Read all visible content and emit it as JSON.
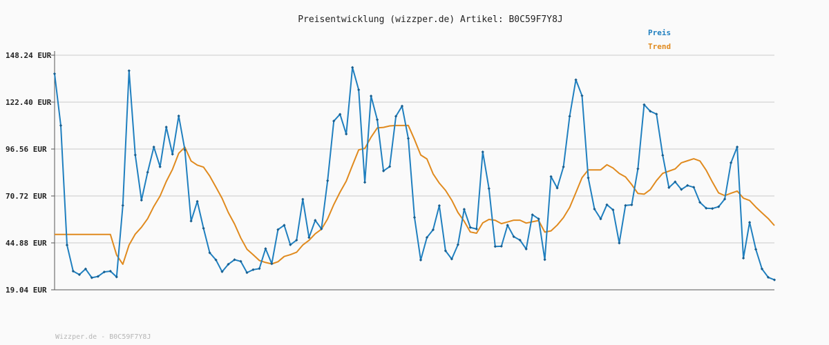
{
  "chart_data": {
    "type": "line",
    "title": "Preisentwicklung (wizzper.de) Artikel: B0C59F7Y8J",
    "footer": "Wizzper.de - B0C59F7Y8J",
    "y_tick_labels": [
      "148.24 EUR",
      "122.40 EUR",
      "96.56 EUR",
      "70.72 EUR",
      "44.88 EUR",
      "19.04 EUR"
    ],
    "y_ticks": [
      148.24,
      122.4,
      96.56,
      70.72,
      44.88,
      19.04
    ],
    "ylim": [
      19.04,
      148.24
    ],
    "grid": true,
    "legend_position": "top-right",
    "series": [
      {
        "name": "Preis",
        "color": "#1f7fbf",
        "values": [
          138.0,
          109.5,
          43.7,
          29.3,
          27.4,
          30.5,
          25.7,
          26.4,
          28.9,
          29.3,
          26.1,
          65.5,
          139.7,
          93.3,
          68.4,
          83.8,
          97.7,
          86.8,
          108.7,
          93.7,
          114.8,
          96.1,
          56.9,
          67.7,
          52.9,
          39.4,
          35.5,
          29.0,
          33.1,
          35.6,
          34.7,
          28.5,
          30.1,
          30.7,
          41.7,
          33.4,
          52.2,
          54.6,
          43.8,
          46.4,
          68.9,
          47.8,
          57.3,
          52.6,
          79.1,
          112.0,
          115.7,
          104.8,
          141.5,
          129.2,
          78.2,
          125.8,
          112.7,
          84.5,
          86.9,
          114.6,
          120.2,
          102.4,
          58.9,
          35.4,
          47.9,
          52.1,
          65.4,
          40.5,
          36.0,
          43.9,
          63.4,
          53.4,
          52.5,
          95.0,
          74.8,
          42.9,
          43.0,
          54.6,
          48.3,
          46.4,
          41.5,
          60.4,
          58.1,
          35.7,
          81.4,
          75.1,
          86.7,
          114.6,
          134.7,
          125.9,
          80.7,
          63.5,
          58.1,
          65.9,
          63.1,
          44.8,
          65.5,
          65.8,
          85.7,
          121.0,
          117.4,
          115.8,
          93.1,
          75.3,
          78.5,
          74.3,
          76.5,
          75.5,
          67.2,
          64.0,
          63.8,
          64.8,
          69.0,
          89.0,
          97.7,
          36.5,
          56.2,
          41.3,
          30.5,
          25.9,
          24.5
        ]
      },
      {
        "name": "Trend",
        "color": "#e08a1e",
        "values": [
          49.5,
          49.5,
          49.5,
          49.5,
          49.5,
          49.5,
          49.5,
          49.5,
          49.5,
          49.5,
          38.2,
          33.1,
          43.7,
          49.7,
          53.5,
          58.2,
          65.0,
          70.7,
          78.7,
          85.4,
          94.2,
          97.6,
          90.0,
          87.7,
          86.6,
          81.7,
          75.6,
          69.4,
          61.6,
          55.3,
          47.6,
          41.4,
          38.4,
          35.2,
          34.1,
          33.3,
          34.5,
          37.4,
          38.4,
          39.7,
          43.7,
          46.3,
          49.9,
          52.4,
          58.1,
          66.0,
          72.8,
          78.9,
          87.6,
          96.1,
          96.9,
          103.1,
          108.2,
          108.5,
          109.3,
          109.5,
          109.5,
          109.6,
          101.8,
          93.3,
          91.1,
          82.9,
          77.8,
          73.8,
          68.4,
          61.6,
          56.8,
          50.9,
          50.2,
          55.9,
          57.8,
          57.3,
          55.5,
          56.4,
          57.4,
          57.4,
          55.8,
          56.5,
          57.2,
          50.8,
          51.5,
          54.7,
          58.8,
          64.4,
          72.6,
          80.8,
          85.1,
          85.1,
          85.1,
          87.9,
          86.1,
          83.1,
          81.2,
          77.0,
          72.1,
          71.7,
          74.2,
          79.2,
          83.2,
          84.4,
          85.6,
          89.0,
          90.1,
          91.2,
          90.0,
          84.9,
          78.4,
          72.4,
          70.9,
          72.2,
          73.4,
          69.5,
          68.2,
          64.6,
          61.4,
          58.3,
          54.4
        ]
      }
    ]
  }
}
